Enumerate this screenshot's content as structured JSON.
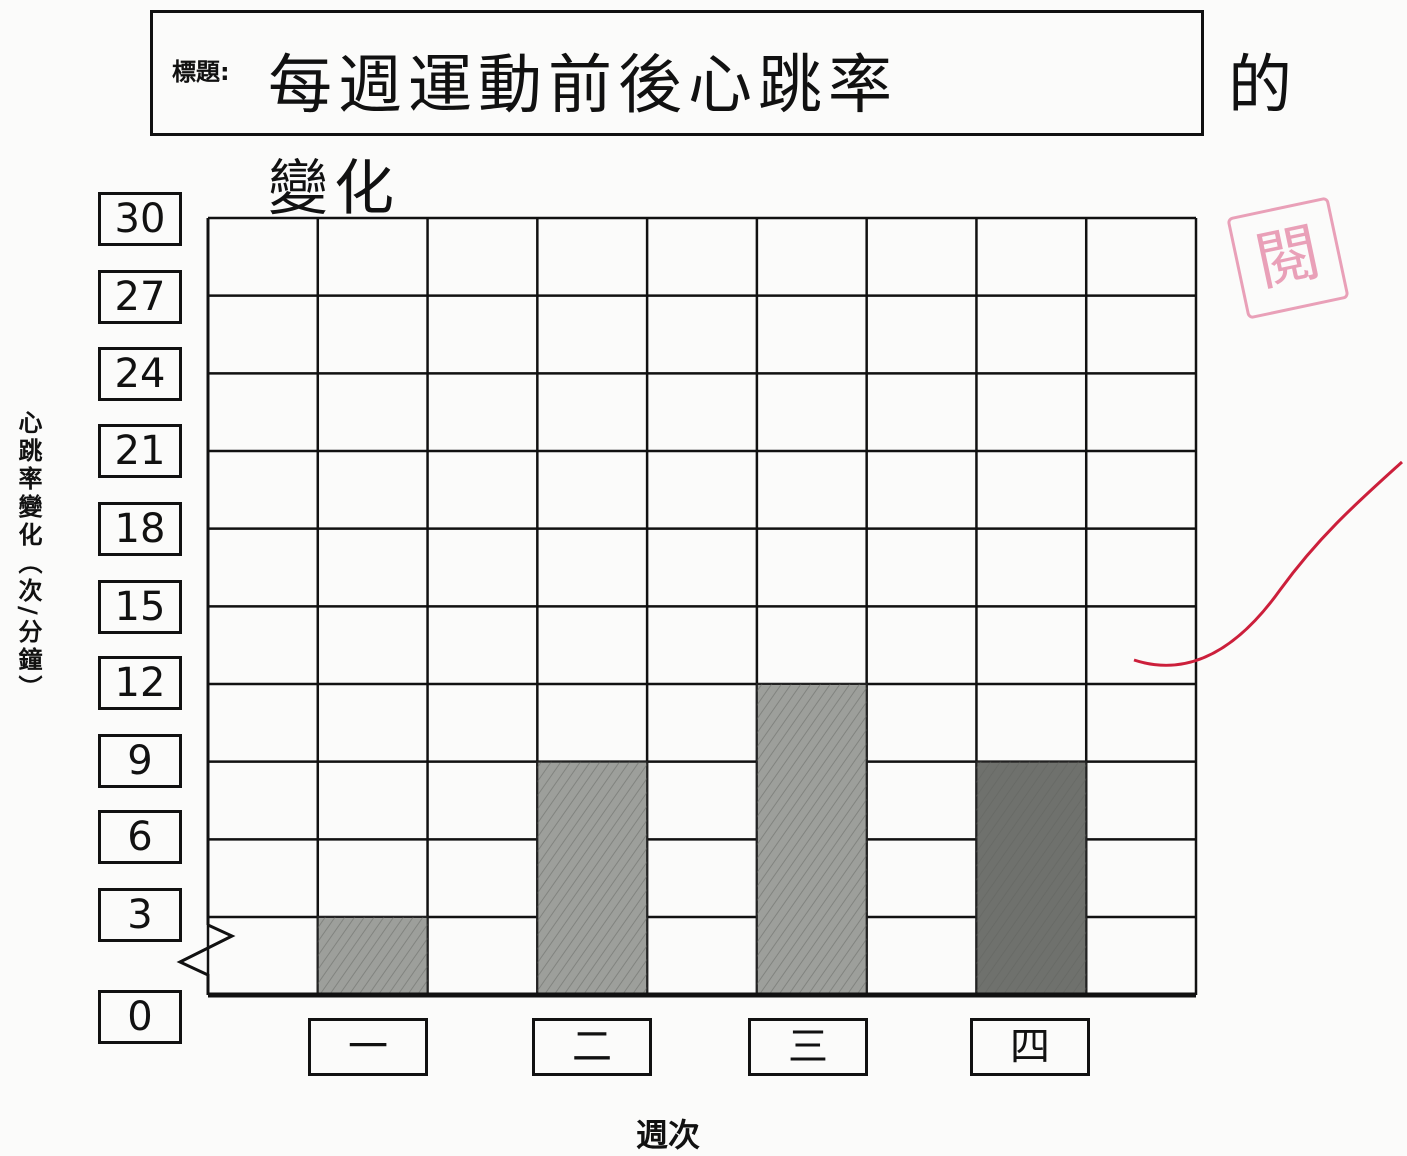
{
  "header": {
    "label": "標題:",
    "title": "每週運動前後心跳率",
    "title_tail": "的",
    "title_line2": "變化"
  },
  "stamp": {
    "text": "閱"
  },
  "chart_data": {
    "type": "bar",
    "title": "每週運動前後心跳率的變化",
    "xlabel": "週次",
    "ylabel": "心跳率變化（次/分鐘）",
    "categories": [
      "一",
      "二",
      "三",
      "四"
    ],
    "values": [
      3,
      9,
      12,
      9
    ],
    "ylim": [
      0,
      30
    ],
    "ytick_labels": [
      "30",
      "27",
      "24",
      "21",
      "18",
      "15",
      "12",
      "9",
      "6",
      "3",
      "0"
    ],
    "axis_break": true,
    "grid": true,
    "colors": {
      "bar": "#9d9f9b",
      "bar_dark": "#6f716d",
      "grid": "#111111",
      "annotation": "#cc1f3b"
    }
  }
}
